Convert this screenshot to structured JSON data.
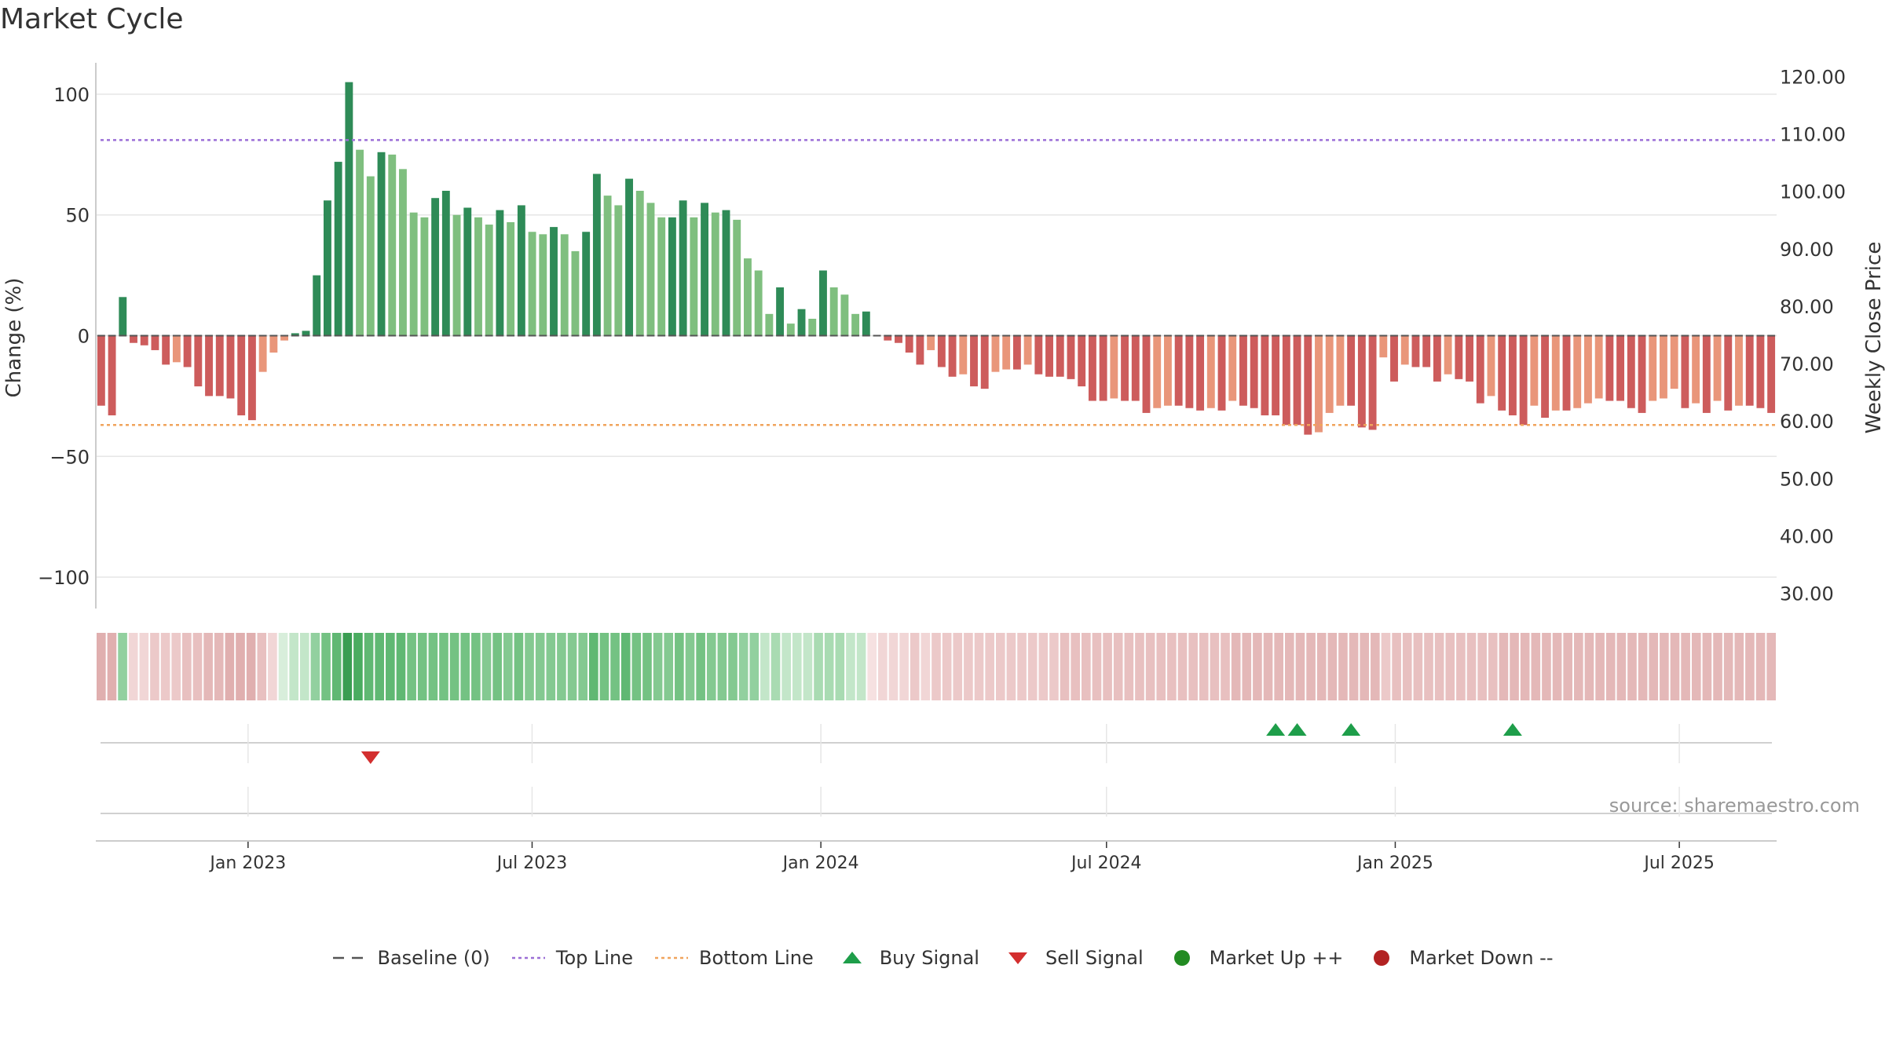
{
  "title": "Market Cycle",
  "source_text": "source: sharemaestro.com",
  "colors": {
    "up_strong": "#2e8b57",
    "up_light": "#7fbf7f",
    "down_strong": "#cd5c5c",
    "down_light": "#e9967a",
    "top_line": "#9b6fd6",
    "bottom_line": "#f0a45c",
    "baseline": "#555555",
    "buy": "#1e9e4a",
    "sell": "#d32f2f",
    "market_up": "#228b22",
    "market_down": "#b22222"
  },
  "legend": [
    {
      "id": "baseline",
      "label": "Baseline (0)",
      "icon": "dash-line-icon"
    },
    {
      "id": "top",
      "label": "Top Line",
      "icon": "dotted-line-icon"
    },
    {
      "id": "bottom",
      "label": "Bottom Line",
      "icon": "dotted-line-icon"
    },
    {
      "id": "buy",
      "label": "Buy Signal",
      "icon": "triangle-up-icon"
    },
    {
      "id": "sell",
      "label": "Sell Signal",
      "icon": "triangle-down-icon"
    },
    {
      "id": "mup",
      "label": "Market Up ++",
      "icon": "circle-icon"
    },
    {
      "id": "mdown",
      "label": "Market Down --",
      "icon": "circle-icon"
    }
  ],
  "chart_data": {
    "type": "bar",
    "title": "Market Cycle",
    "ylabel": "Change (%)",
    "y2label": "Weekly Close Price",
    "ylim": [
      -113,
      113
    ],
    "y2lim": [
      27.5,
      122.5
    ],
    "yticks": [
      100,
      50,
      0,
      -50,
      -100
    ],
    "ytick_labels": [
      "100",
      "50",
      "0",
      "−50",
      "−100"
    ],
    "y2ticks": [
      120,
      110,
      100,
      90,
      80,
      70,
      60,
      50,
      40,
      30
    ],
    "y2tick_labels": [
      "120.00",
      "110.00",
      "100.00",
      "90.00",
      "80.00",
      "70.00",
      "60.00",
      "50.00",
      "40.00",
      "30.00"
    ],
    "xlim": [
      "2022-09-26",
      "2025-09-01"
    ],
    "xticks": [
      {
        "date": "2023-01-01",
        "label": "Jan 2023"
      },
      {
        "date": "2023-07-01",
        "label": "Jul 2023"
      },
      {
        "date": "2024-01-01",
        "label": "Jan 2024"
      },
      {
        "date": "2024-07-01",
        "label": "Jul 2024"
      },
      {
        "date": "2025-01-01",
        "label": "Jan 2025"
      },
      {
        "date": "2025-07-01",
        "label": "Jul 2025"
      }
    ],
    "grid": true,
    "legend_position": "bottom",
    "top_line": 81,
    "bottom_line": -37,
    "baseline": 0,
    "first_week": "2022-09-26",
    "week_step_days": 7,
    "series": [
      {
        "name": "Change (%)",
        "values": [
          -29,
          -33,
          16,
          -3,
          -4,
          -6,
          -12,
          -11,
          -13,
          -21,
          -25,
          -25,
          -26,
          -33,
          -35,
          -15,
          -7,
          -2,
          1,
          2,
          25,
          56,
          72,
          105,
          77,
          66,
          76,
          75,
          69,
          51,
          49,
          57,
          60,
          50,
          53,
          49,
          46,
          52,
          47,
          54,
          43,
          42,
          45,
          42,
          35,
          43,
          67,
          58,
          54,
          65,
          60,
          55,
          49,
          49,
          56,
          49,
          55,
          51,
          52,
          48,
          32,
          27,
          9,
          20,
          5,
          11,
          7,
          27,
          20,
          17,
          9,
          10,
          0,
          -2,
          -3,
          -7,
          -12,
          -6,
          -13,
          -17,
          -16,
          -21,
          -22,
          -15,
          -14,
          -14,
          -12,
          -16,
          -17,
          -17,
          -18,
          -21,
          -27,
          -27,
          -26,
          -27,
          -27,
          -32,
          -30,
          -29,
          -29,
          -30,
          -31,
          -30,
          -31,
          -27,
          -29,
          -30,
          -33,
          -33,
          -37,
          -37,
          -41,
          -40,
          -32,
          -29,
          -29,
          -38,
          -39,
          -9,
          -19,
          -12,
          -13,
          -13,
          -19,
          -16,
          -18,
          -19,
          -28,
          -25,
          -31,
          -33,
          -37,
          -29,
          -34,
          -31,
          -31,
          -30,
          -28,
          -26,
          -27,
          -27,
          -30,
          -32,
          -27,
          -26,
          -22,
          -30,
          -28,
          -32,
          -27,
          -31,
          -29,
          -29,
          -30,
          -32
        ]
      },
      {
        "name": "Weekly Close Price",
        "values": []
      }
    ],
    "strength_strip": [
      -6,
      -6,
      4,
      -2,
      -2,
      -3,
      -3,
      -3,
      -4,
      -4,
      -5,
      -5,
      -6,
      -6,
      -6,
      -4,
      -2,
      1,
      2,
      2,
      4,
      6,
      7,
      9,
      8,
      7,
      7,
      7,
      7,
      6,
      6,
      6,
      6,
      6,
      6,
      6,
      5,
      6,
      5,
      6,
      5,
      5,
      5,
      5,
      5,
      5,
      7,
      6,
      6,
      7,
      6,
      6,
      5,
      5,
      6,
      5,
      6,
      5,
      5,
      5,
      4,
      4,
      2,
      3,
      2,
      2,
      2,
      3,
      3,
      3,
      2,
      2,
      -1,
      -2,
      -2,
      -2,
      -3,
      -2,
      -3,
      -3,
      -3,
      -3,
      -3,
      -3,
      -3,
      -3,
      -3,
      -3,
      -3,
      -3,
      -4,
      -4,
      -4,
      -4,
      -4,
      -4,
      -4,
      -4,
      -4,
      -4,
      -4,
      -4,
      -4,
      -4,
      -4,
      -4,
      -5,
      -5,
      -5,
      -5,
      -5,
      -5,
      -5,
      -5,
      -5,
      -5,
      -5,
      -5,
      -5,
      -5,
      -3,
      -4,
      -4,
      -4,
      -4,
      -4,
      -4,
      -4,
      -4,
      -4,
      -4,
      -5,
      -5,
      -5,
      -5,
      -5,
      -5,
      -5,
      -5,
      -5,
      -5,
      -5,
      -5,
      -5,
      -5,
      -5,
      -5,
      -5,
      -5,
      -5,
      -5,
      -5,
      -5,
      -5,
      -5,
      -5,
      -5
    ],
    "buy_signals": [
      "2024-10-28",
      "2024-11-11",
      "2024-12-16",
      "2025-03-31"
    ],
    "sell_signals": [
      "2023-03-20"
    ]
  }
}
